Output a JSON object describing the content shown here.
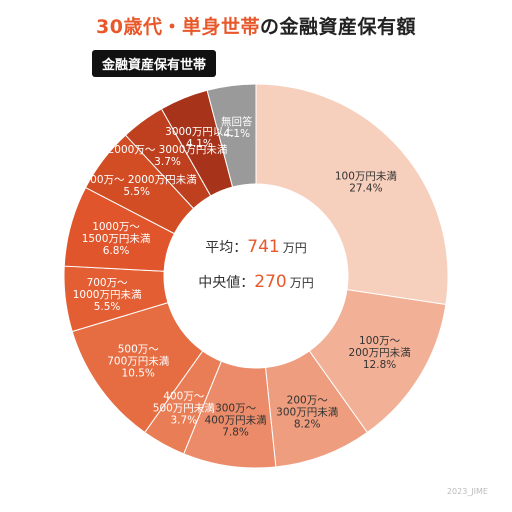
{
  "header": {
    "title_accent": "30歳代・単身世帯",
    "title_rest": "の金融資産保有額",
    "badge": "金融資産保有世帯"
  },
  "center": {
    "avg_label": "平均：",
    "avg_value": "741",
    "avg_unit": "万円",
    "median_label": "中央値：",
    "median_value": "270",
    "median_unit": "万円"
  },
  "credit": "2023_JIME",
  "chart_data": {
    "type": "pie",
    "donut": true,
    "categories": [
      "100万円未満",
      "100万〜200万円未満",
      "200万〜300万円未満",
      "300万〜400万円未満",
      "400万〜500万円未満",
      "500万〜700万円未満",
      "700万〜1000万円未満",
      "1000万〜1500万円未満",
      "1500万〜2000万円未満",
      "2000万〜3000万円未満",
      "3000万円以上",
      "無回答"
    ],
    "label_lines": [
      [
        "100万円未満"
      ],
      [
        "100万〜",
        "200万円未満"
      ],
      [
        "200万〜",
        "300万円未満"
      ],
      [
        "300万〜",
        "400万円未満"
      ],
      [
        "400万〜",
        "500万円未満"
      ],
      [
        "500万〜",
        "700万円未満"
      ],
      [
        "700万〜",
        "1000万円未満"
      ],
      [
        "1000万〜",
        "1500万円未満"
      ],
      [
        "1500万〜 2000万円未満"
      ],
      [
        "2000万〜 3000万円未満"
      ],
      [
        "3000万円以上"
      ],
      [
        "無回答"
      ]
    ],
    "values": [
      27.4,
      12.8,
      8.2,
      7.8,
      3.7,
      10.5,
      5.5,
      6.8,
      5.5,
      3.7,
      4.1,
      4.1
    ],
    "value_labels": [
      "27.4%",
      "12.8%",
      "8.2%",
      "7.8%",
      "3.7%",
      "10.5%",
      "5.5%",
      "6.8%",
      "5.5%",
      "3.7%",
      "4.1%",
      "4.1%"
    ],
    "colors": [
      "#f7cfbd",
      "#f2b197",
      "#ee9d7e",
      "#eb8b69",
      "#e97d56",
      "#e66c42",
      "#e45e34",
      "#e0552b",
      "#d24d24",
      "#be401f",
      "#a8331b",
      "#9a9a9a"
    ],
    "label_colors": [
      "#333333",
      "#333333",
      "#333333",
      "#333333",
      "#ffffff",
      "#ffffff",
      "#ffffff",
      "#ffffff",
      "#ffffff",
      "#ffffff",
      "#ffffff",
      "#ffffff"
    ]
  }
}
